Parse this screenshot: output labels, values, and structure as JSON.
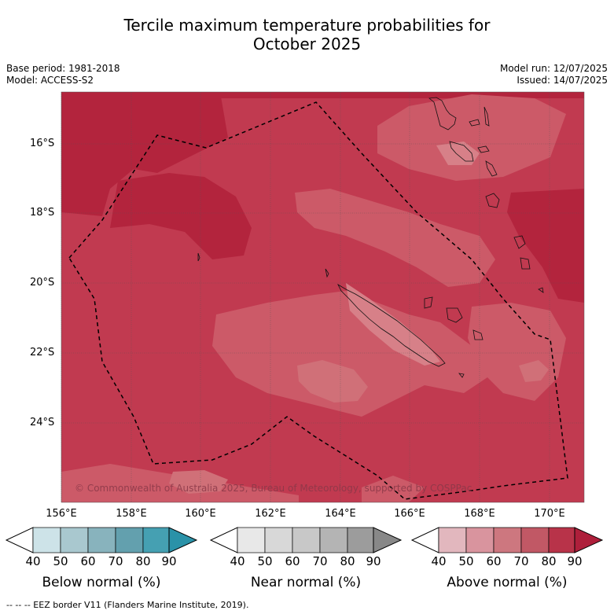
{
  "title_line1": "Tercile maximum temperature probabilities for",
  "title_line2": "October 2025",
  "base_period": "Base period: 1981-2018",
  "model": "Model: ACCESS-S2",
  "model_run": "Model run: 12/07/2025",
  "issued": "Issued: 14/07/2025",
  "copyright": "© Commonwealth of Australia 2025, Bureau of Meteorology, supported by COSPPac",
  "latitudes": [
    "16°S",
    "18°S",
    "20°S",
    "22°S",
    "24°S"
  ],
  "longitudes": [
    "156°E",
    "158°E",
    "160°E",
    "162°E",
    "164°E",
    "166°E",
    "168°E",
    "170°E"
  ],
  "colorbars": [
    {
      "name": "Below normal (%)",
      "ticks": [
        "40",
        "50",
        "60",
        "70",
        "80",
        "90"
      ],
      "colors": [
        "#ffffff",
        "#cde3e8",
        "#a9c8cf",
        "#88b3bd",
        "#63a0ae",
        "#45a0b2",
        "#2a92a8"
      ]
    },
    {
      "name": "Near normal (%)",
      "ticks": [
        "40",
        "50",
        "60",
        "70",
        "80",
        "90"
      ],
      "colors": [
        "#ffffff",
        "#e8e8e8",
        "#d8d8d8",
        "#c8c8c8",
        "#b4b4b4",
        "#9c9c9c",
        "#888888"
      ]
    },
    {
      "name": "Above normal (%)",
      "ticks": [
        "40",
        "50",
        "60",
        "70",
        "80",
        "90"
      ],
      "colors": [
        "#ffffff",
        "#e2b7be",
        "#d9949e",
        "#cd777f",
        "#c15865",
        "#b83349",
        "#ae1f3b"
      ]
    }
  ],
  "footer": "--  --  -- EEZ border V11 (Flanders Marine Institute, 2019)."
}
